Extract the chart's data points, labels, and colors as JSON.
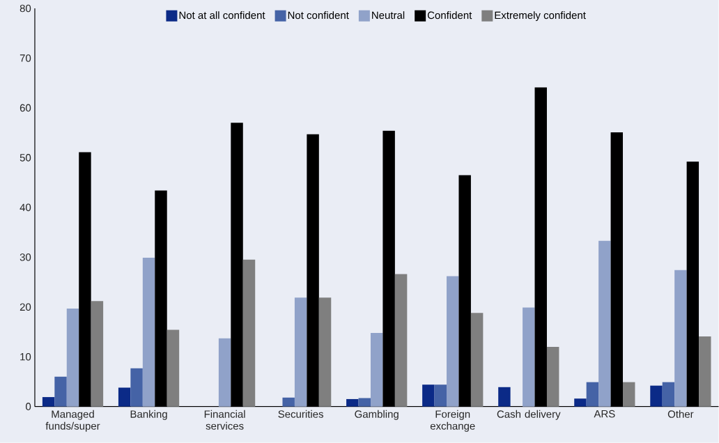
{
  "chart_data": {
    "type": "bar",
    "categories": [
      "Managed funds/super",
      "Banking",
      "Financial services",
      "Securities",
      "Gambling",
      "Foreign exchange",
      "Cash delivery",
      "ARS",
      "Other"
    ],
    "series": [
      {
        "name": "Not at all confident",
        "color": "#0b2a87",
        "values": [
          1.9,
          3.8,
          0,
          0,
          1.5,
          4.4,
          3.9,
          1.6,
          4.2
        ]
      },
      {
        "name": "Not confident",
        "color": "#4563a6",
        "values": [
          6.0,
          7.7,
          0,
          1.8,
          1.7,
          4.4,
          0,
          4.9,
          4.9
        ]
      },
      {
        "name": "Neutral",
        "color": "#90a2c9",
        "values": [
          19.7,
          29.9,
          13.7,
          21.9,
          14.8,
          26.2,
          19.9,
          33.3,
          27.4
        ]
      },
      {
        "name": "Confident",
        "color": "#000000",
        "values": [
          51.1,
          43.4,
          57.0,
          54.7,
          55.4,
          46.5,
          64.1,
          55.1,
          49.2
        ]
      },
      {
        "name": "Extremely confident",
        "color": "#7f7f7f",
        "values": [
          21.2,
          15.4,
          29.5,
          21.9,
          26.6,
          18.8,
          12.0,
          4.9,
          14.1
        ]
      }
    ],
    "ylim": [
      0,
      80
    ],
    "yticks": [
      0,
      10,
      20,
      30,
      40,
      50,
      60,
      70,
      80
    ],
    "legend": "top"
  }
}
